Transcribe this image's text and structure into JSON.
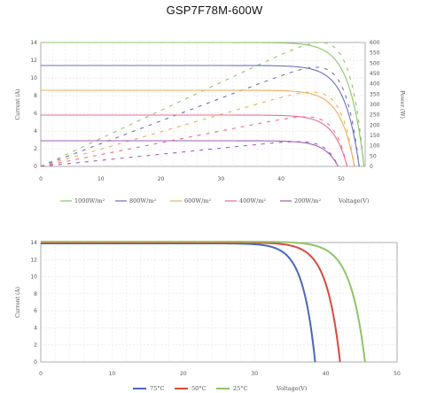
{
  "title": "GSP7F78M-600W",
  "chart_data": [
    {
      "type": "line",
      "subtype": "irradiance IV/PV curves",
      "xlabel": "Voltage(V)",
      "ylabel": "Current (A)",
      "y2label": "Power (W)",
      "xlim": [
        0,
        54
      ],
      "ylim": [
        0,
        14
      ],
      "y2lim": [
        0,
        600
      ],
      "xticks": [
        "0",
        "10",
        "20",
        "30",
        "40",
        "50"
      ],
      "yticks": [
        "0",
        "2",
        "4",
        "6",
        "8",
        "10",
        "12",
        "14"
      ],
      "y2ticks": [
        "0",
        "50",
        "100",
        "150",
        "200",
        "250",
        "300",
        "350",
        "400",
        "450",
        "500",
        "550",
        "600"
      ],
      "grid": true,
      "legend_position": "bottom",
      "series": [
        {
          "name": "1000W/m²",
          "isc": 14.0,
          "voc": 53.8,
          "pmp": 600,
          "color": "#8fc46a"
        },
        {
          "name": "800W/m²",
          "isc": 11.4,
          "voc": 53.0,
          "pmp": 480,
          "color": "#6a72b8"
        },
        {
          "name": "600W/m²",
          "isc": 8.6,
          "voc": 52.2,
          "pmp": 360,
          "color": "#f0ac5c"
        },
        {
          "name": "400W/m²",
          "isc": 5.8,
          "voc": 51.0,
          "pmp": 240,
          "color": "#e86e92"
        },
        {
          "name": "200W/m²",
          "isc": 2.9,
          "voc": 49.5,
          "pmp": 120,
          "color": "#a25eb6"
        }
      ]
    },
    {
      "type": "line",
      "subtype": "temperature IV curves",
      "xlabel": "Voltage(V)",
      "ylabel": "Current (A)",
      "xlim": [
        0,
        50
      ],
      "ylim": [
        0,
        14
      ],
      "xticks": [
        "0",
        "10",
        "20",
        "30",
        "40",
        "50"
      ],
      "yticks": [
        "0",
        "2",
        "4",
        "6",
        "8",
        "10",
        "12",
        "14"
      ],
      "grid": true,
      "legend_position": "bottom",
      "series": [
        {
          "name": "75°C",
          "isc": 13.9,
          "voc": 38.5,
          "color": "#4a68b8"
        },
        {
          "name": "50°C",
          "isc": 14.0,
          "voc": 42.0,
          "color": "#d94a3e"
        },
        {
          "name": "25°C",
          "isc": 14.1,
          "voc": 45.5,
          "color": "#8fc46a"
        }
      ]
    }
  ]
}
